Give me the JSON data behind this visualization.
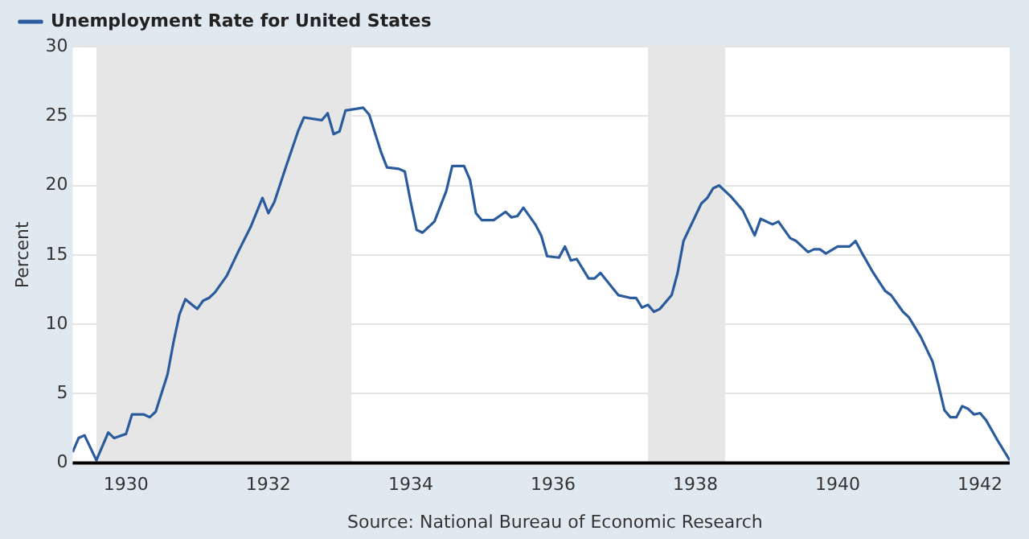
{
  "chart_data": {
    "type": "line",
    "ylabel": "Percent",
    "x": [
      "1929-04",
      "1929-05",
      "1929-06",
      "1929-08",
      "1929-10",
      "1929-11",
      "1930-01",
      "1930-02",
      "1930-04",
      "1930-05",
      "1930-06",
      "1930-08",
      "1930-09",
      "1930-10",
      "1930-11",
      "1931-01",
      "1931-02",
      "1931-03",
      "1931-04",
      "1931-06",
      "1931-08",
      "1931-10",
      "1931-12",
      "1932-01",
      "1932-02",
      "1932-04",
      "1932-06",
      "1932-07",
      "1932-10",
      "1932-11",
      "1932-12",
      "1933-01",
      "1933-02",
      "1933-05",
      "1933-06",
      "1933-08",
      "1933-09",
      "1933-11",
      "1933-12",
      "1934-01",
      "1934-02",
      "1934-03",
      "1934-05",
      "1934-07",
      "1934-08",
      "1934-10",
      "1934-11",
      "1934-12",
      "1935-01",
      "1935-03",
      "1935-05",
      "1935-06",
      "1935-07",
      "1935-08",
      "1935-10",
      "1935-11",
      "1935-12",
      "1936-02",
      "1936-03",
      "1936-04",
      "1936-05",
      "1936-07",
      "1936-08",
      "1936-09",
      "1936-12",
      "1937-02",
      "1937-03",
      "1937-04",
      "1937-05",
      "1937-06",
      "1937-07",
      "1937-09",
      "1937-10",
      "1937-11",
      "1938-01",
      "1938-02",
      "1938-03",
      "1938-04",
      "1938-05",
      "1938-07",
      "1938-09",
      "1938-11",
      "1938-12",
      "1939-02",
      "1939-03",
      "1939-05",
      "1939-06",
      "1939-08",
      "1939-09",
      "1939-10",
      "1939-11",
      "1940-01",
      "1940-03",
      "1940-04",
      "1940-05",
      "1940-07",
      "1940-09",
      "1940-10",
      "1940-12",
      "1941-01",
      "1941-03",
      "1941-05",
      "1941-06",
      "1941-07",
      "1941-08",
      "1941-09",
      "1941-10",
      "1941-11",
      "1941-12",
      "1942-01",
      "1942-02",
      "1942-04",
      "1942-06"
    ],
    "series": [
      {
        "name": "Unemployment Rate for United States",
        "color": "#2a5b9c",
        "values": [
          0.8,
          1.8,
          2.0,
          0.2,
          2.2,
          1.8,
          2.1,
          3.5,
          3.5,
          3.3,
          3.7,
          6.4,
          8.7,
          10.7,
          11.8,
          11.1,
          11.7,
          11.9,
          12.3,
          13.5,
          15.3,
          17.0,
          19.1,
          18.0,
          18.8,
          21.4,
          23.9,
          24.9,
          24.7,
          25.2,
          23.7,
          23.9,
          25.4,
          25.6,
          25.1,
          22.4,
          21.3,
          21.2,
          21.0,
          18.8,
          16.8,
          16.6,
          17.4,
          19.6,
          21.4,
          21.4,
          20.4,
          18.0,
          17.5,
          17.5,
          18.1,
          17.7,
          17.8,
          18.4,
          17.2,
          16.4,
          14.9,
          14.8,
          15.6,
          14.6,
          14.7,
          13.3,
          13.3,
          13.7,
          12.1,
          11.9,
          11.9,
          11.2,
          11.4,
          10.9,
          11.1,
          12.1,
          13.7,
          16.0,
          17.8,
          18.7,
          19.1,
          19.8,
          20.0,
          19.2,
          18.2,
          16.4,
          17.6,
          17.2,
          17.4,
          16.2,
          16.0,
          15.2,
          15.4,
          15.4,
          15.1,
          15.6,
          15.6,
          16.0,
          15.2,
          13.7,
          12.4,
          12.1,
          10.9,
          10.5,
          9.1,
          7.3,
          5.6,
          3.8,
          3.3,
          3.3,
          4.1,
          3.9,
          3.5,
          3.6,
          3.1,
          1.6,
          0.2
        ]
      }
    ],
    "xlim": [
      "1929-04",
      "1942-06"
    ],
    "xticks": [
      "1930",
      "1932",
      "1934",
      "1936",
      "1938",
      "1940",
      "1942"
    ],
    "ylim": [
      0,
      30
    ],
    "yticks": [
      0,
      5,
      10,
      15,
      20,
      25,
      30
    ],
    "bands": [
      {
        "axis": "x",
        "from": "1929-08",
        "to": "1933-03",
        "color": "#e6e6e6"
      },
      {
        "axis": "x",
        "from": "1937-05",
        "to": "1938-06",
        "color": "#e6e6e6"
      }
    ],
    "grid": "y",
    "legend": "top left",
    "marker": "none",
    "line_style": "solid",
    "annotations": [
      "Source: National Bureau of Economic Research"
    ]
  }
}
